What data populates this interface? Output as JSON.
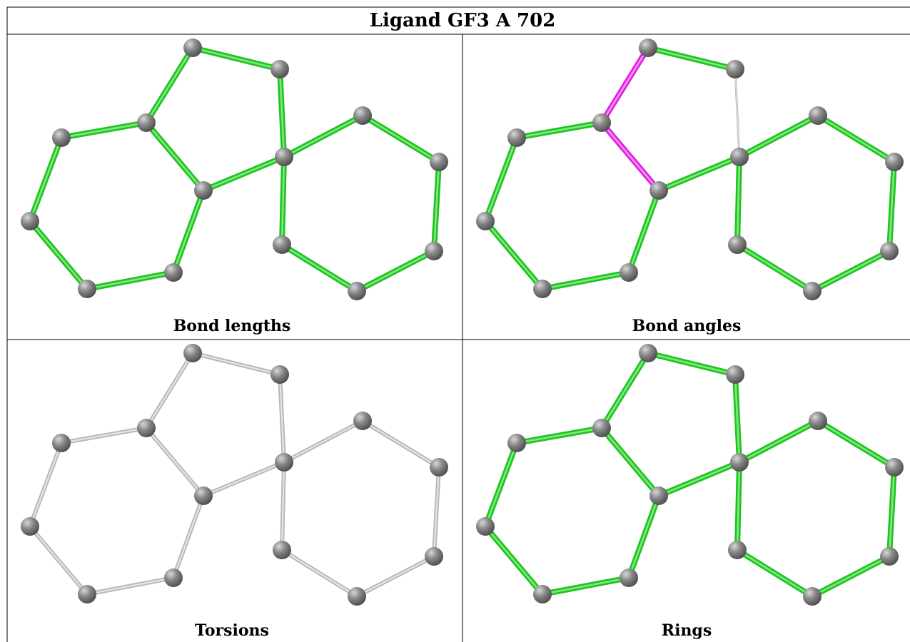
{
  "header": {
    "title": "Ligand GF3 A 702"
  },
  "panels": [
    {
      "caption": "Bond lengths"
    },
    {
      "caption": "Bond angles"
    },
    {
      "caption": "Torsions"
    },
    {
      "caption": "Rings"
    }
  ]
}
